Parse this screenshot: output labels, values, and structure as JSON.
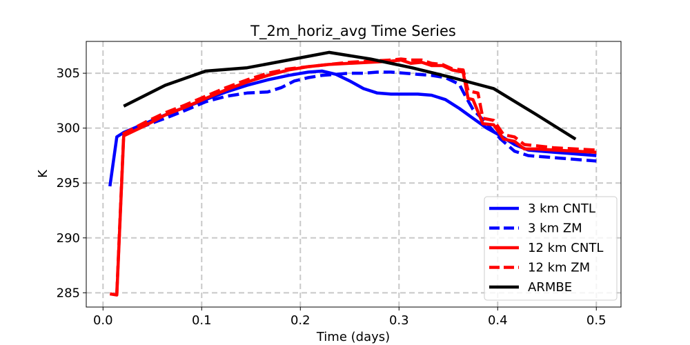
{
  "chart_data": {
    "type": "line",
    "title": "T_2m_horiz_avg Time Series",
    "xlabel": "Time (days)",
    "ylabel": "K",
    "xlim": [
      -0.017,
      0.525
    ],
    "ylim": [
      283.7,
      307.9
    ],
    "xticks": [
      0.0,
      0.1,
      0.2,
      0.3,
      0.4,
      0.5
    ],
    "xtick_labels": [
      "0.0",
      "0.1",
      "0.2",
      "0.3",
      "0.4",
      "0.5"
    ],
    "yticks": [
      285,
      290,
      295,
      300,
      305
    ],
    "ytick_labels": [
      "285",
      "290",
      "295",
      "300",
      "305"
    ],
    "grid": true,
    "legend_position": "bottom-right",
    "series": [
      {
        "name": "3 km CNTL",
        "color": "#0000ff",
        "style": "solid",
        "x": [
          0.007,
          0.014,
          0.021,
          0.042,
          0.063,
          0.083,
          0.104,
          0.125,
          0.146,
          0.167,
          0.188,
          0.208,
          0.222,
          0.236,
          0.25,
          0.264,
          0.278,
          0.292,
          0.306,
          0.319,
          0.333,
          0.347,
          0.361,
          0.375,
          0.389,
          0.403,
          0.417,
          0.431,
          0.444,
          0.458,
          0.472,
          0.486,
          0.5
        ],
        "y": [
          294.7,
          299.2,
          299.6,
          300.4,
          301.2,
          301.9,
          302.6,
          303.3,
          303.9,
          304.4,
          304.8,
          305.1,
          305.2,
          304.9,
          304.3,
          303.6,
          303.2,
          303.1,
          303.1,
          303.1,
          303.0,
          302.6,
          301.8,
          300.9,
          300.0,
          299.3,
          298.5,
          298.0,
          297.9,
          297.8,
          297.7,
          297.6,
          297.5
        ]
      },
      {
        "name": "3 km ZM",
        "color": "#0000ff",
        "style": "dashed",
        "x": [
          0.021,
          0.042,
          0.063,
          0.083,
          0.104,
          0.125,
          0.146,
          0.167,
          0.181,
          0.194,
          0.208,
          0.222,
          0.236,
          0.25,
          0.264,
          0.278,
          0.292,
          0.306,
          0.319,
          0.333,
          0.347,
          0.361,
          0.368,
          0.375,
          0.389,
          0.403,
          0.417,
          0.431,
          0.444,
          0.458,
          0.472,
          0.486,
          0.5
        ],
        "y": [
          299.5,
          300.2,
          300.9,
          301.6,
          302.4,
          302.9,
          303.2,
          303.3,
          303.7,
          304.3,
          304.6,
          304.8,
          304.9,
          305.0,
          305.0,
          305.1,
          305.1,
          305.0,
          304.9,
          304.8,
          304.6,
          304.0,
          302.8,
          301.7,
          300.4,
          299.0,
          297.9,
          297.5,
          297.4,
          297.3,
          297.2,
          297.1,
          297.0
        ]
      },
      {
        "name": "12 km CNTL",
        "color": "#ff0000",
        "style": "solid",
        "x": [
          0.007,
          0.014,
          0.021,
          0.042,
          0.063,
          0.083,
          0.104,
          0.125,
          0.146,
          0.167,
          0.188,
          0.208,
          0.229,
          0.25,
          0.271,
          0.292,
          0.302,
          0.312,
          0.323,
          0.333,
          0.344,
          0.354,
          0.365,
          0.37,
          0.375,
          0.385,
          0.396,
          0.406,
          0.417,
          0.427,
          0.438,
          0.458,
          0.479,
          0.5
        ],
        "y": [
          284.9,
          284.8,
          299.3,
          300.2,
          301.2,
          301.9,
          302.7,
          303.5,
          304.2,
          304.8,
          305.3,
          305.6,
          305.8,
          305.9,
          306.0,
          306.1,
          306.2,
          305.9,
          306.0,
          305.7,
          305.7,
          305.3,
          305.1,
          302.7,
          302.6,
          300.4,
          300.3,
          299.0,
          298.8,
          298.1,
          298.1,
          298.0,
          297.9,
          297.8
        ]
      },
      {
        "name": "12 km ZM",
        "color": "#ff0000",
        "style": "dashed",
        "x": [
          0.014,
          0.021,
          0.042,
          0.063,
          0.083,
          0.104,
          0.125,
          0.146,
          0.167,
          0.188,
          0.208,
          0.229,
          0.25,
          0.271,
          0.292,
          0.302,
          0.312,
          0.323,
          0.333,
          0.344,
          0.354,
          0.365,
          0.37,
          0.38,
          0.385,
          0.396,
          0.406,
          0.417,
          0.427,
          0.438,
          0.458,
          0.479,
          0.5
        ],
        "y": [
          285.0,
          299.5,
          300.5,
          301.4,
          302.1,
          302.9,
          303.7,
          304.4,
          305.0,
          305.4,
          305.6,
          305.8,
          306.0,
          306.1,
          306.2,
          306.3,
          306.2,
          306.2,
          305.9,
          305.8,
          305.4,
          305.3,
          303.4,
          303.2,
          300.9,
          300.7,
          299.4,
          299.2,
          298.5,
          298.4,
          298.2,
          298.1,
          298.0
        ]
      },
      {
        "name": "ARMBE",
        "color": "#000000",
        "style": "solid",
        "x": [
          0.021,
          0.063,
          0.104,
          0.146,
          0.188,
          0.229,
          0.271,
          0.313,
          0.354,
          0.396,
          0.438,
          0.479
        ],
        "y": [
          302.0,
          303.9,
          305.2,
          305.5,
          306.2,
          306.9,
          306.3,
          305.5,
          304.6,
          303.6,
          301.3,
          299.0
        ]
      }
    ]
  }
}
